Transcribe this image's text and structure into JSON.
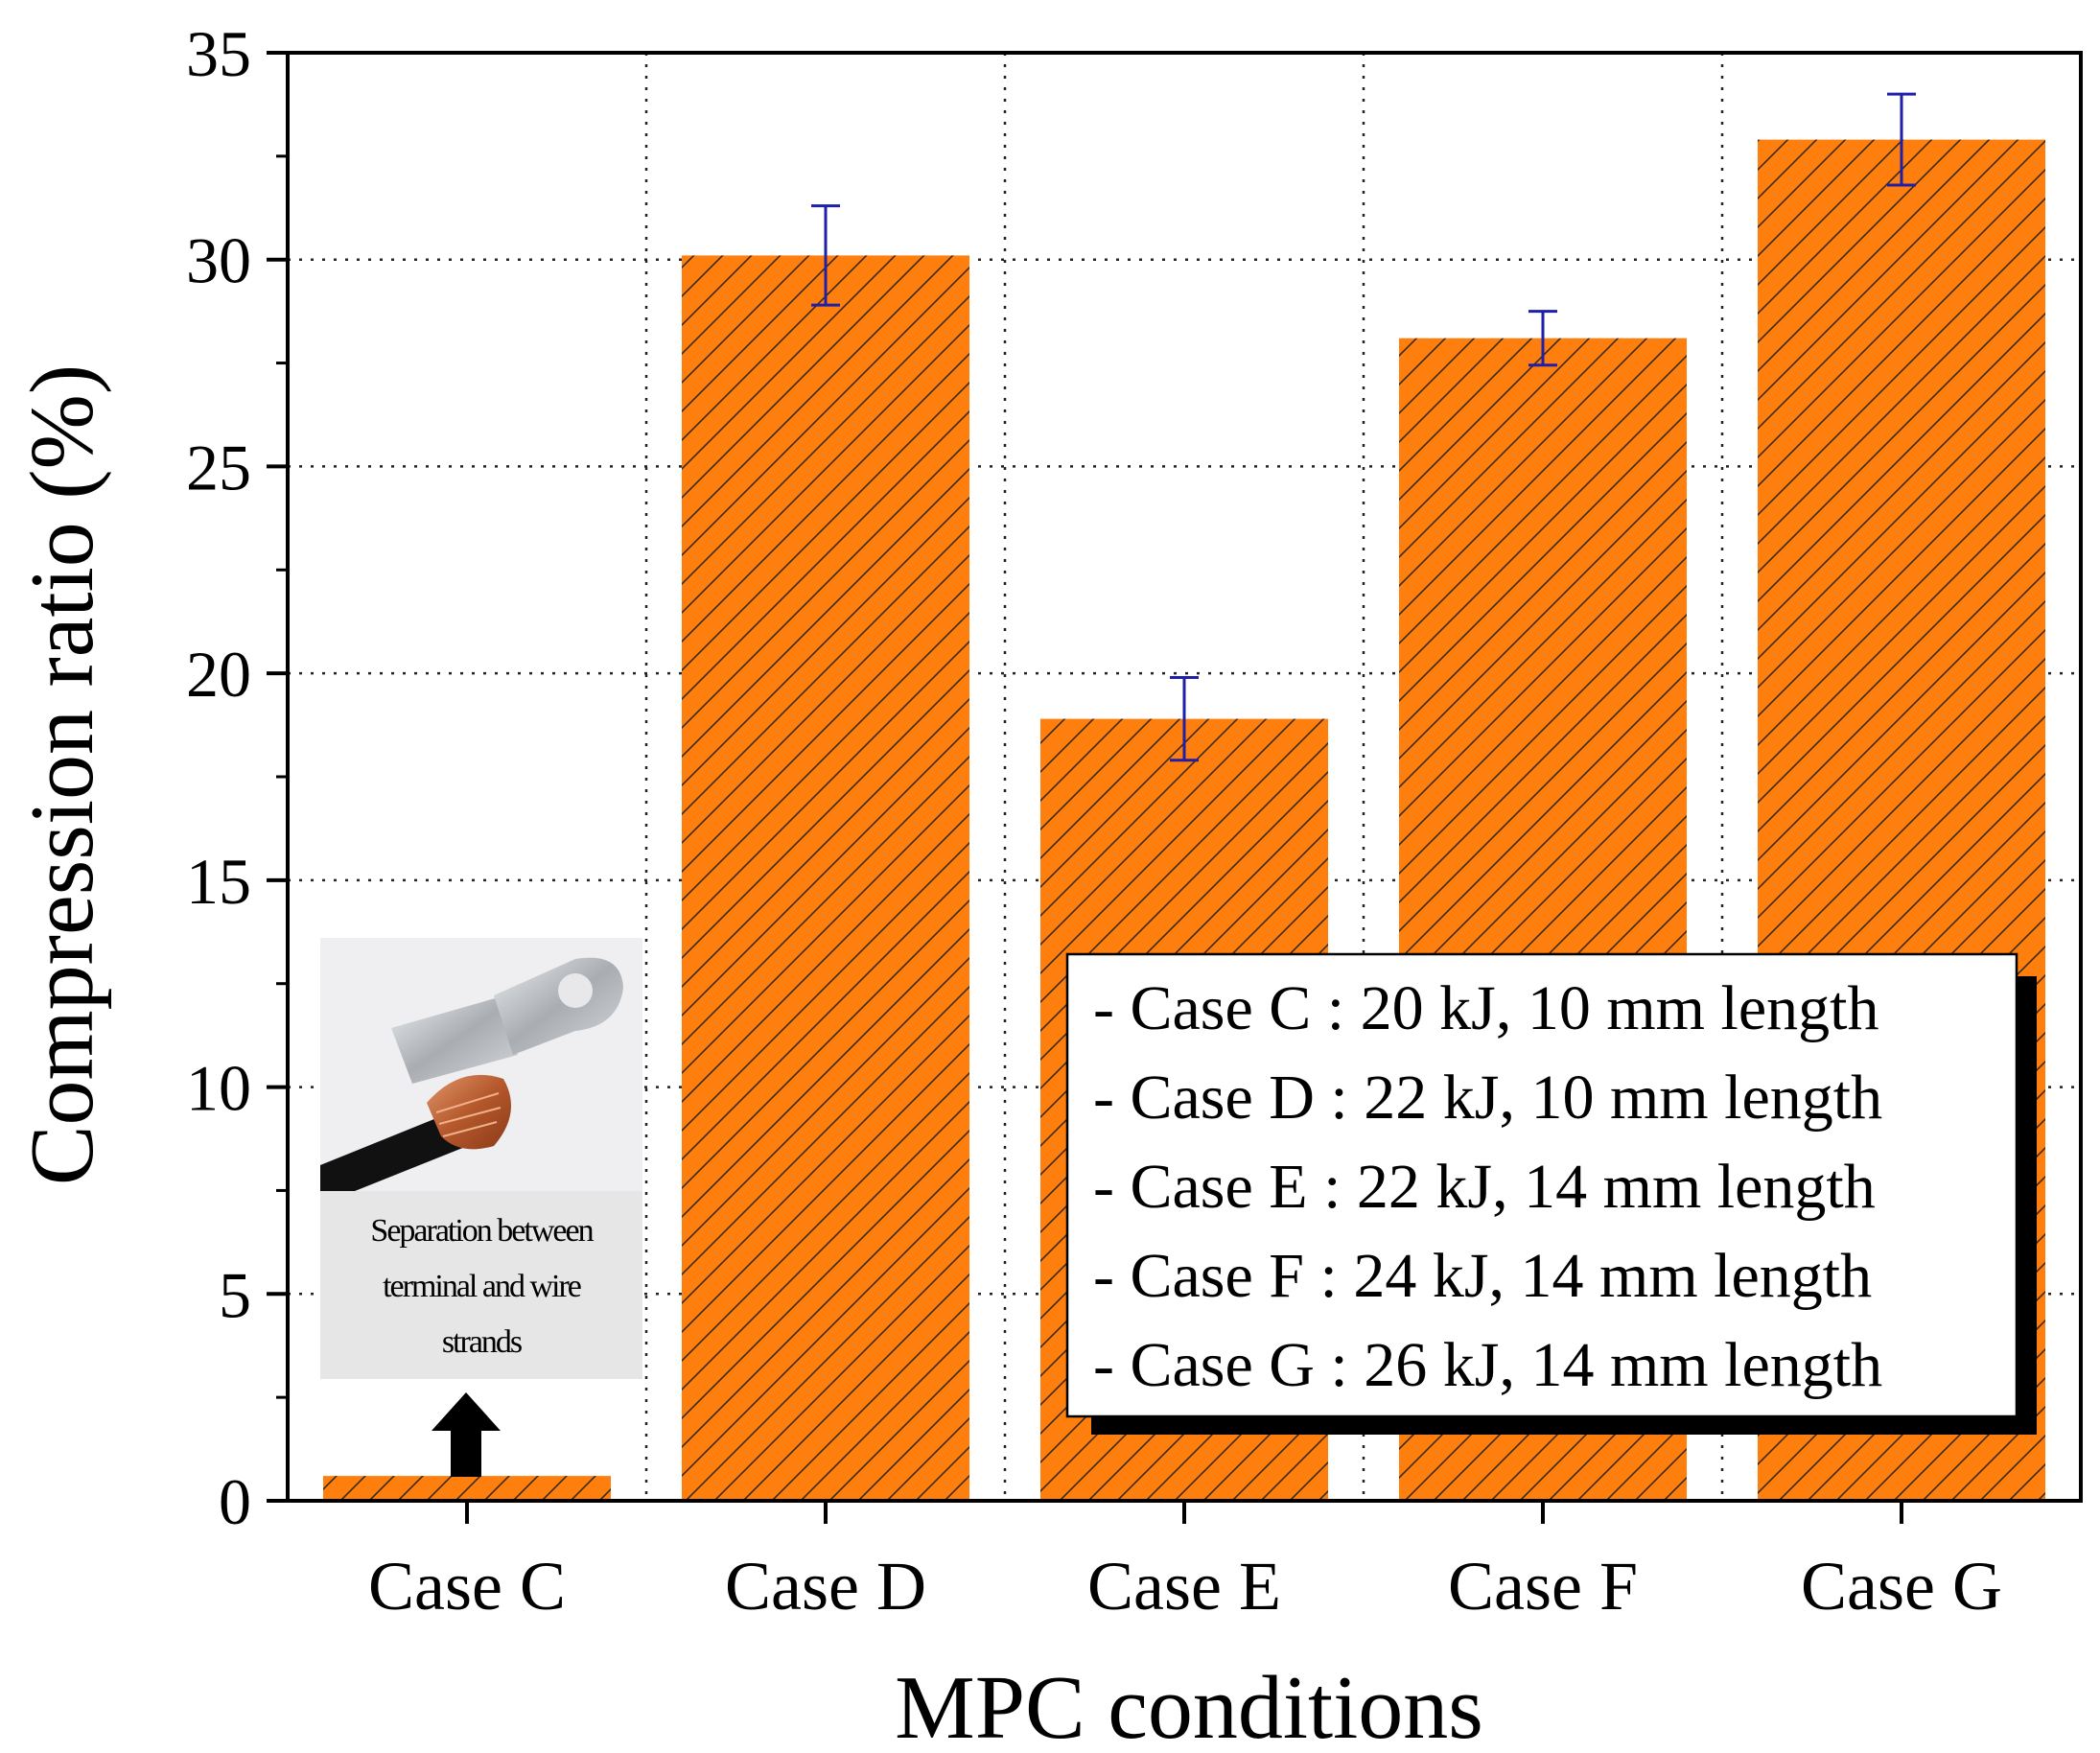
{
  "chart_data": {
    "type": "bar",
    "title": "",
    "xlabel": "MPC conditions",
    "ylabel": "Compression ratio (%)",
    "ylim": [
      0,
      35
    ],
    "yticks": [
      0,
      5,
      10,
      15,
      20,
      25,
      30,
      35
    ],
    "grid": true,
    "categories": [
      "Case C",
      "Case D",
      "Case E",
      "Case F",
      "Case G"
    ],
    "values": [
      0.6,
      30.1,
      18.9,
      28.1,
      32.9
    ],
    "errors": [
      null,
      1.2,
      1.0,
      0.65,
      1.1
    ],
    "bar_color": "#ff7f0e",
    "error_color": "#1f1fa8",
    "legend_placement": "lower-right",
    "legend": [
      "- Case C : 20 kJ, 10 mm length",
      "- Case D : 22 kJ, 10 mm length",
      "- Case E : 22 kJ, 14 mm length",
      "- Case F : 24 kJ, 14 mm length",
      "- Case G : 26 kJ, 14 mm length"
    ],
    "annotation": {
      "lines": [
        "Separation between",
        "terminal and wire",
        "strands"
      ],
      "target": "Case C"
    }
  }
}
